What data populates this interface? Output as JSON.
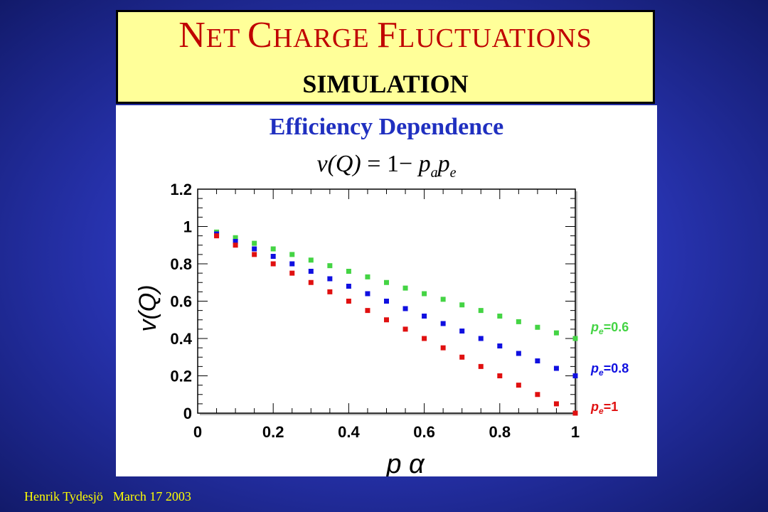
{
  "title": {
    "main_parts": [
      {
        "text": "N",
        "big": true
      },
      {
        "text": "ET ",
        "big": false
      },
      {
        "text": "C",
        "big": true
      },
      {
        "text": "HARGE ",
        "big": false
      },
      {
        "text": "F",
        "big": true
      },
      {
        "text": "LUCTUATIONS",
        "big": false
      }
    ],
    "sub": "SIMULATION"
  },
  "subtitle": "Efficiency Dependence",
  "formula": {
    "lhs": "v(Q)",
    "eq": " = 1− ",
    "p1": "p",
    "p1_sub": "a",
    "p2": "p",
    "p2_sub": "e"
  },
  "footer": {
    "author": "Henrik Tydesjö",
    "date": "March 17 2003"
  },
  "colors": {
    "title_red": "#c00000",
    "subtitle_blue": "#2030c0",
    "series_green": "#44d444",
    "series_blue": "#1010e0",
    "series_red": "#e01010",
    "footer_yellow": "#ffff00"
  },
  "chart_data": {
    "type": "scatter",
    "xlabel": "p α",
    "ylabel": "v(Q)",
    "xlim": [
      0,
      1
    ],
    "ylim": [
      0,
      1.2
    ],
    "xticks": [
      "0",
      "0.2",
      "0.4",
      "0.6",
      "0.8",
      "1"
    ],
    "yticks": [
      "0",
      "0.2",
      "0.4",
      "0.6",
      "0.8",
      "1",
      "1.2"
    ],
    "x": [
      0.05,
      0.1,
      0.15,
      0.2,
      0.25,
      0.3,
      0.35,
      0.4,
      0.45,
      0.5,
      0.55,
      0.6,
      0.65,
      0.7,
      0.75,
      0.8,
      0.85,
      0.9,
      0.95,
      1.0
    ],
    "legend_placement": "right, outside plot",
    "series": [
      {
        "name": "pe=0.6",
        "legend_p": "p",
        "legend_sub": "e",
        "legend_val": "=0.6",
        "color": "#44d444",
        "values": [
          0.97,
          0.94,
          0.91,
          0.88,
          0.85,
          0.82,
          0.79,
          0.76,
          0.73,
          0.7,
          0.67,
          0.64,
          0.61,
          0.58,
          0.55,
          0.52,
          0.49,
          0.46,
          0.43,
          0.4
        ]
      },
      {
        "name": "pe=0.8",
        "legend_p": "p",
        "legend_sub": "e",
        "legend_val": "=0.8",
        "color": "#1010e0",
        "values": [
          0.96,
          0.92,
          0.88,
          0.84,
          0.8,
          0.76,
          0.72,
          0.68,
          0.64,
          0.6,
          0.56,
          0.52,
          0.48,
          0.44,
          0.4,
          0.36,
          0.32,
          0.28,
          0.24,
          0.2
        ]
      },
      {
        "name": "pe=1",
        "legend_p": "p",
        "legend_sub": "e",
        "legend_val": "=1",
        "color": "#e01010",
        "values": [
          0.95,
          0.9,
          0.85,
          0.8,
          0.75,
          0.7,
          0.65,
          0.6,
          0.55,
          0.5,
          0.45,
          0.4,
          0.35,
          0.3,
          0.25,
          0.2,
          0.15,
          0.1,
          0.05,
          0.0
        ]
      }
    ]
  }
}
